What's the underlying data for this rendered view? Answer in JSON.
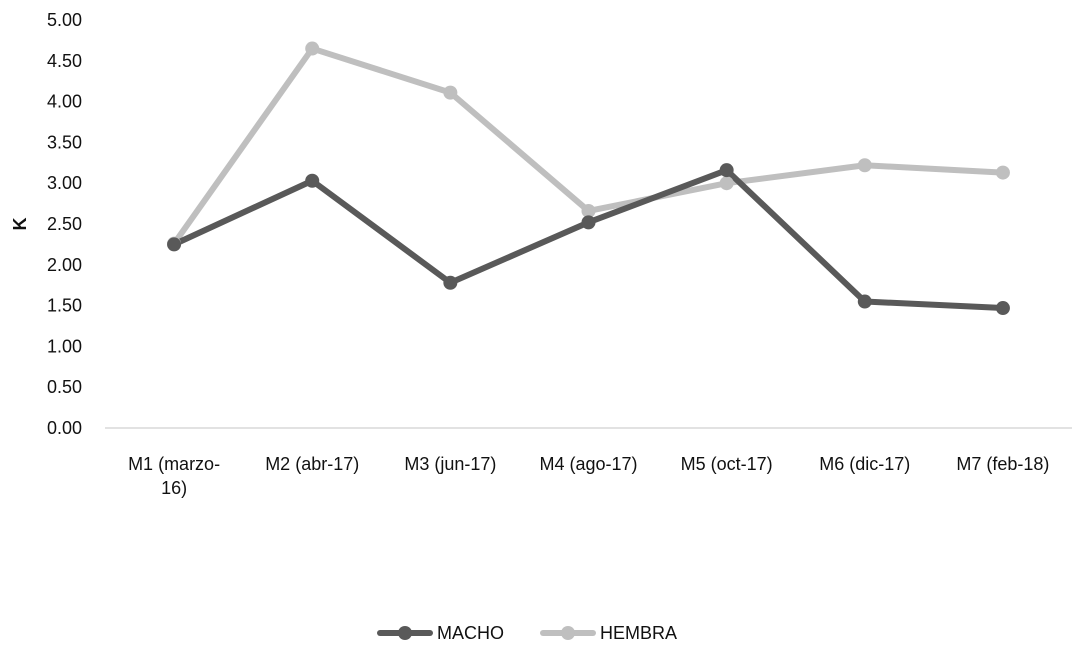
{
  "chart_data": {
    "type": "line",
    "title": "",
    "xlabel": "",
    "ylabel": "K",
    "ylim": [
      0,
      5
    ],
    "yticks": [
      "0.00",
      "0.50",
      "1.00",
      "1.50",
      "2.00",
      "2.50",
      "3.00",
      "3.50",
      "4.00",
      "4.50",
      "5.00"
    ],
    "categories": [
      [
        "M1 (marzo-",
        "16)"
      ],
      [
        "M2 (abr-17)"
      ],
      [
        "M3 (jun-17)"
      ],
      [
        "M4 (ago-17)"
      ],
      [
        "M5 (oct-17)"
      ],
      [
        "M6 (dic-17)"
      ],
      [
        "M7 (feb-18)"
      ]
    ],
    "series": [
      {
        "name": "MACHO",
        "color": "#595959",
        "values": [
          2.25,
          3.03,
          1.78,
          2.52,
          3.16,
          1.55,
          1.47
        ]
      },
      {
        "name": "HEMBRA",
        "color": "#bfbfbf",
        "values": [
          2.26,
          4.65,
          4.11,
          2.66,
          3.0,
          3.22,
          3.13
        ]
      }
    ],
    "grid": false,
    "legend_position": "bottom"
  }
}
